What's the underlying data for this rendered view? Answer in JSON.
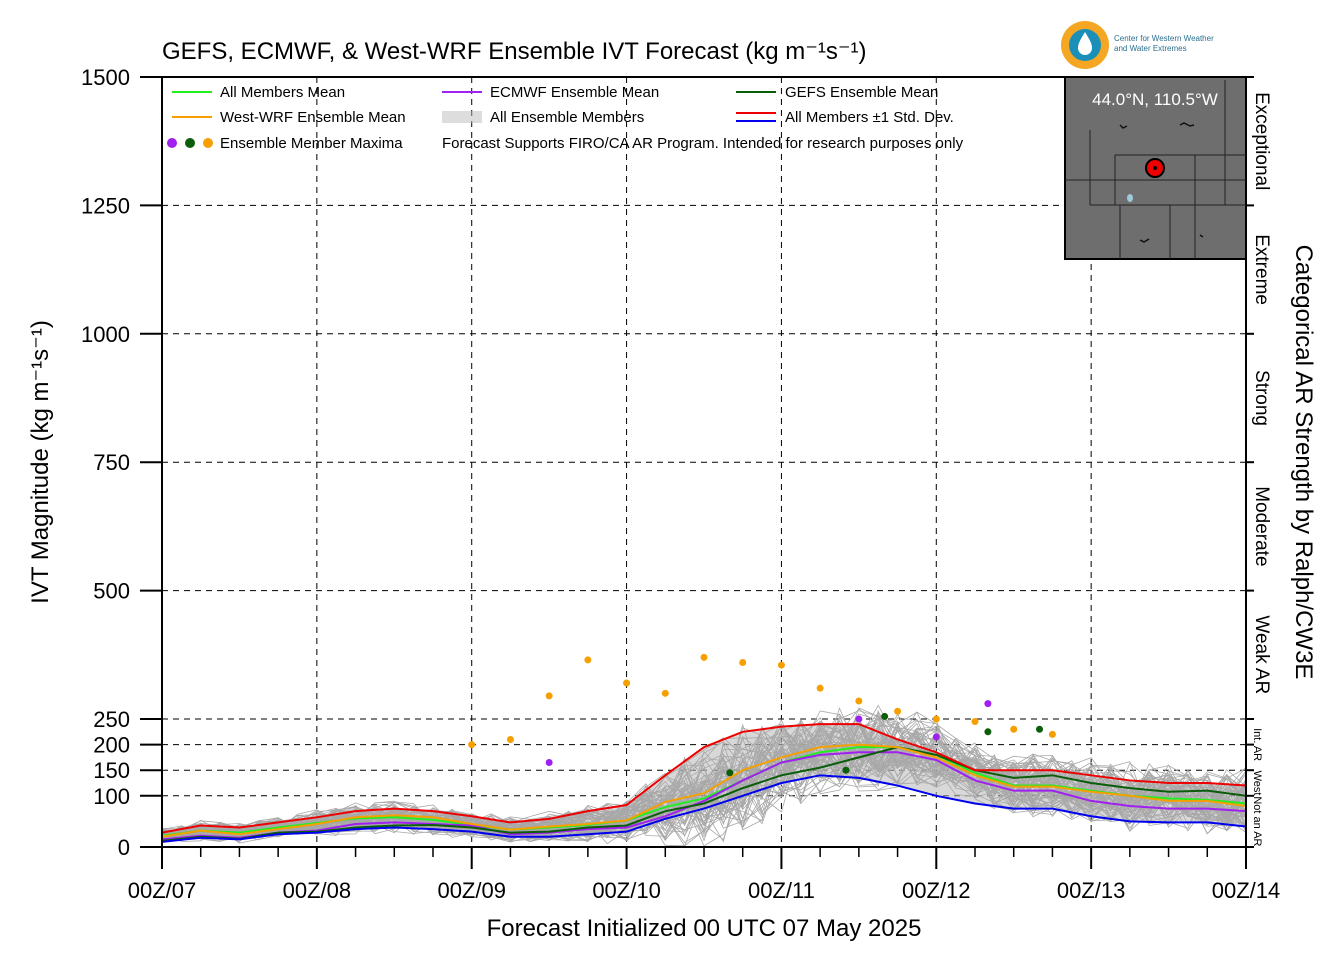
{
  "title": "GEFS, ECMWF, & West-WRF Ensemble IVT Forecast (kg m⁻¹s⁻¹)",
  "logo_text": [
    "Center for Western Weather",
    "and Water Extremes"
  ],
  "inset_label": "44.0°N, 110.5°W",
  "chart_data": {
    "type": "line",
    "title": "GEFS, ECMWF, & West-WRF Ensemble IVT Forecast (kg m⁻¹s⁻¹)",
    "xlabel": "Forecast Initialized 00 UTC 07 May 2025",
    "ylabel": "IVT Magnitude (kg m⁻¹s⁻¹)",
    "right_label": "Categorical AR Strength by Ralph/CW3E",
    "ylim": [
      0,
      1500
    ],
    "xlim": [
      0,
      168
    ],
    "y_ticks": [
      0,
      100,
      150,
      200,
      250,
      500,
      750,
      1000,
      1250,
      1500
    ],
    "x_ticks": [
      0,
      24,
      48,
      72,
      96,
      120,
      144,
      168
    ],
    "x_tick_labels": [
      "00Z/07",
      "00Z/08",
      "00Z/09",
      "00Z/10",
      "00Z/11",
      "00Z/12",
      "00Z/13",
      "00Z/14"
    ],
    "grid": true,
    "legend_position": "top-left",
    "legend": [
      {
        "label": "All Members Mean",
        "color": "#22ee22"
      },
      {
        "label": "ECMWF Ensemble Mean",
        "color": "#a020f0"
      },
      {
        "label": "GEFS Ensemble Mean",
        "color": "#0a5e0a"
      },
      {
        "label": "West-WRF Ensemble Mean",
        "color": "#f5a000"
      },
      {
        "label": "All Ensemble Members",
        "color": "#bbbbbb"
      },
      {
        "label": "All Members ±1 Std. Dev.",
        "color": "#ee0000",
        "color2": "#0000ee"
      },
      {
        "label": "Ensemble Member Maxima",
        "colors": [
          "#a020f0",
          "#0a5e0a",
          "#f5a000"
        ]
      }
    ],
    "note": "Forecast Supports FIRO/CA AR Program. Intended for research purposes only",
    "categories": [
      {
        "label": "Not an AR",
        "from": 0,
        "to": 100
      },
      {
        "label": "West",
        "from": 100,
        "to": 150
      },
      {
        "label": "Int. AR",
        "from": 150,
        "to": 250
      },
      {
        "label": "Weak AR",
        "from": 250,
        "to": 500
      },
      {
        "label": "Moderate",
        "from": 500,
        "to": 750
      },
      {
        "label": "Strong",
        "from": 750,
        "to": 1000
      },
      {
        "label": "Extreme",
        "from": 1000,
        "to": 1250
      },
      {
        "label": "Exceptional",
        "from": 1250,
        "to": 1500
      }
    ],
    "x": [
      0,
      6,
      12,
      18,
      24,
      30,
      36,
      42,
      48,
      54,
      60,
      66,
      72,
      78,
      84,
      90,
      96,
      102,
      108,
      114,
      120,
      126,
      132,
      138,
      144,
      150,
      156,
      162,
      168
    ],
    "series": [
      {
        "name": "All Members Mean",
        "color": "#22ee22",
        "values": [
          22,
          32,
          28,
          38,
          47,
          56,
          58,
          53,
          43,
          34,
          38,
          43,
          52,
          78,
          95,
          130,
          165,
          185,
          195,
          195,
          180,
          145,
          120,
          120,
          110,
          100,
          95,
          92,
          85
        ]
      },
      {
        "name": "ECMWF Ensemble Mean",
        "color": "#a020f0",
        "values": [
          15,
          22,
          18,
          28,
          32,
          45,
          48,
          45,
          42,
          25,
          28,
          35,
          38,
          60,
          90,
          130,
          165,
          180,
          185,
          185,
          170,
          130,
          110,
          110,
          90,
          80,
          75,
          75,
          70
        ]
      },
      {
        "name": "GEFS Ensemble Mean",
        "color": "#0a5e0a",
        "values": [
          12,
          20,
          16,
          28,
          30,
          38,
          42,
          43,
          38,
          28,
          30,
          38,
          42,
          70,
          85,
          115,
          140,
          155,
          175,
          195,
          180,
          150,
          135,
          140,
          125,
          115,
          108,
          110,
          100
        ]
      },
      {
        "name": "West-WRF Ensemble Mean",
        "color": "#f5a000",
        "values": [
          20,
          32,
          25,
          35,
          45,
          58,
          62,
          58,
          45,
          34,
          40,
          45,
          52,
          88,
          105,
          150,
          175,
          195,
          200,
          195,
          175,
          140,
          118,
          118,
          108,
          100,
          90,
          90,
          80
        ]
      },
      {
        "name": "All Members +1 Std. Dev.",
        "color": "#ee0000",
        "values": [
          28,
          42,
          38,
          48,
          58,
          70,
          75,
          70,
          60,
          48,
          55,
          70,
          82,
          140,
          195,
          225,
          235,
          240,
          240,
          210,
          185,
          150,
          150,
          150,
          140,
          130,
          125,
          125,
          120
        ]
      },
      {
        "name": "All Members -1 Std. Dev.",
        "color": "#0000ee",
        "values": [
          10,
          18,
          15,
          25,
          28,
          35,
          38,
          35,
          30,
          20,
          20,
          25,
          30,
          55,
          75,
          100,
          125,
          140,
          135,
          120,
          100,
          85,
          75,
          75,
          60,
          50,
          48,
          48,
          40
        ]
      }
    ],
    "maxima": [
      {
        "color": "#f5a000",
        "x": 22,
        "y": 200
      },
      {
        "color": "#f5a000",
        "x": 25,
        "y": 210
      },
      {
        "color": "#f5a000",
        "x": 28,
        "y": 295
      },
      {
        "color": "#f5a000",
        "x": 31,
        "y": 365
      },
      {
        "color": "#f5a000",
        "x": 34,
        "y": 320
      },
      {
        "color": "#f5a000",
        "x": 37,
        "y": 300
      },
      {
        "color": "#f5a000",
        "x": 40,
        "y": 370
      },
      {
        "color": "#f5a000",
        "x": 43,
        "y": 360
      },
      {
        "color": "#f5a000",
        "x": 46,
        "y": 355
      },
      {
        "color": "#f5a000",
        "x": 49,
        "y": 310
      },
      {
        "color": "#f5a000",
        "x": 52,
        "y": 285
      },
      {
        "color": "#f5a000",
        "x": 55,
        "y": 265
      },
      {
        "color": "#f5a000",
        "x": 58,
        "y": 250
      },
      {
        "color": "#f5a000",
        "x": 61,
        "y": 245
      },
      {
        "color": "#f5a000",
        "x": 64,
        "y": 230
      },
      {
        "color": "#f5a000",
        "x": 67,
        "y": 220
      },
      {
        "color": "#a020f0",
        "x": 28,
        "y": 165
      },
      {
        "color": "#a020f0",
        "x": 52,
        "y": 250
      },
      {
        "color": "#a020f0",
        "x": 58,
        "y": 215
      },
      {
        "color": "#a020f0",
        "x": 62,
        "y": 280
      },
      {
        "color": "#0a5e0a",
        "x": 54,
        "y": 255
      },
      {
        "color": "#0a5e0a",
        "x": 62,
        "y": 225
      },
      {
        "color": "#0a5e0a",
        "x": 66,
        "y": 230
      },
      {
        "color": "#0a5e0a",
        "x": 42,
        "y": 145
      },
      {
        "color": "#0a5e0a",
        "x": 51,
        "y": 150
      }
    ]
  }
}
